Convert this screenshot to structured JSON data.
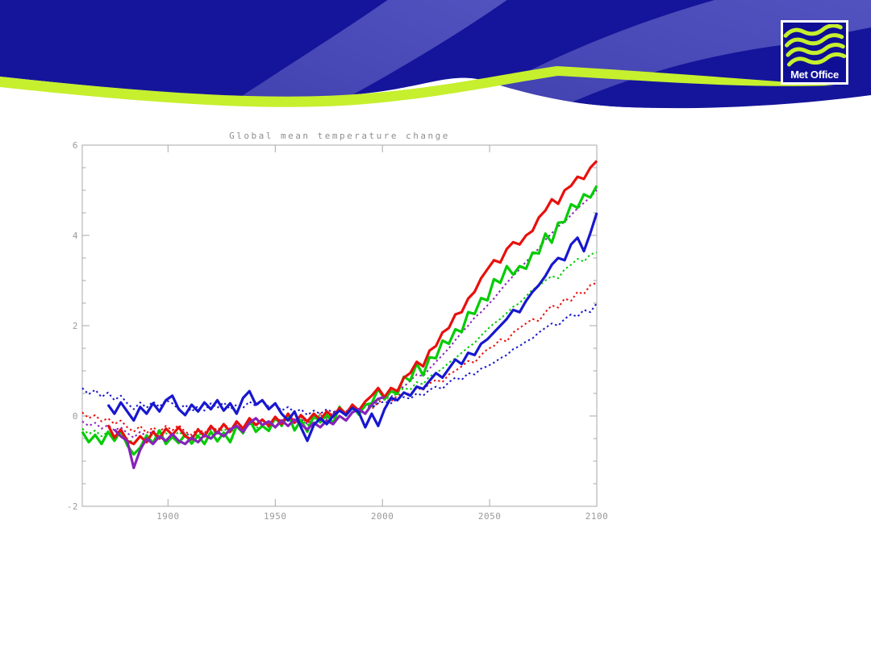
{
  "logo": {
    "text": "Met Office"
  },
  "colors": {
    "banner_navy": "#15159B",
    "banner_wave_light": "#4A4AB8",
    "banner_wave_light2": "#5353C0",
    "banner_lime": "#C6EF2E",
    "logo_navy": "#0F0F96",
    "logo_lime": "#C6EF2E",
    "background": "#FFFFFF",
    "axis": "#A9A9A9",
    "tick_label": "#9A9A9A",
    "title": "#8E8E8E"
  },
  "chart_data": {
    "type": "line",
    "title": "Global mean temperature change",
    "xlabel": "",
    "ylabel": "",
    "xlim": [
      1860,
      2100
    ],
    "ylim": [
      -2,
      6
    ],
    "xticks": [
      1900,
      1950,
      2000,
      2050,
      2100
    ],
    "yticks": [
      -2,
      0,
      2,
      4,
      6
    ],
    "y_minor_step": 0.5,
    "grid": false,
    "legend": "none",
    "x": [
      1860,
      1863,
      1866,
      1869,
      1872,
      1875,
      1878,
      1881,
      1884,
      1887,
      1890,
      1893,
      1896,
      1899,
      1902,
      1905,
      1908,
      1911,
      1914,
      1917,
      1920,
      1923,
      1926,
      1929,
      1932,
      1935,
      1938,
      1941,
      1944,
      1947,
      1950,
      1953,
      1956,
      1959,
      1962,
      1965,
      1968,
      1971,
      1974,
      1977,
      1980,
      1983,
      1986,
      1989,
      1992,
      1995,
      1998,
      2001,
      2004,
      2007,
      2010,
      2013,
      2016,
      2019,
      2022,
      2025,
      2028,
      2031,
      2034,
      2037,
      2040,
      2043,
      2046,
      2049,
      2052,
      2055,
      2058,
      2061,
      2064,
      2067,
      2070,
      2073,
      2076,
      2079,
      2082,
      2085,
      2088,
      2091,
      2094,
      2097,
      2100
    ],
    "series": [
      {
        "name": "dashed-red",
        "color": "#E8100C",
        "style": "dashed",
        "width": 2,
        "values": [
          0.08,
          -0.05,
          0.02,
          -0.12,
          -0.05,
          -0.18,
          -0.1,
          -0.25,
          -0.35,
          -0.22,
          -0.38,
          -0.25,
          -0.35,
          -0.22,
          -0.32,
          -0.2,
          -0.35,
          -0.42,
          -0.28,
          -0.38,
          -0.22,
          -0.32,
          -0.18,
          -0.28,
          -0.15,
          -0.25,
          -0.1,
          -0.2,
          -0.08,
          -0.18,
          -0.02,
          -0.12,
          0.02,
          -0.1,
          -0.02,
          -0.15,
          -0.05,
          0.05,
          -0.05,
          0.08,
          0.15,
          0.05,
          0.18,
          0.1,
          0.22,
          0.15,
          0.3,
          0.38,
          0.32,
          0.45,
          0.52,
          0.48,
          0.62,
          0.58,
          0.72,
          0.8,
          0.75,
          0.92,
          1.0,
          1.1,
          1.22,
          1.18,
          1.35,
          1.48,
          1.55,
          1.7,
          1.65,
          1.85,
          1.95,
          2.05,
          2.15,
          2.1,
          2.3,
          2.45,
          2.4,
          2.6,
          2.55,
          2.75,
          2.7,
          2.9,
          2.95
        ]
      },
      {
        "name": "dashed-green",
        "color": "#00CC00",
        "style": "dashed",
        "width": 2,
        "values": [
          -0.28,
          -0.4,
          -0.32,
          -0.45,
          -0.35,
          -0.48,
          -0.38,
          -0.5,
          -0.6,
          -0.45,
          -0.55,
          -0.4,
          -0.5,
          -0.38,
          -0.48,
          -0.35,
          -0.45,
          -0.52,
          -0.38,
          -0.45,
          -0.3,
          -0.4,
          -0.28,
          -0.38,
          -0.22,
          -0.32,
          -0.18,
          -0.28,
          -0.15,
          -0.25,
          -0.08,
          -0.18,
          -0.05,
          -0.15,
          -0.08,
          -0.2,
          -0.08,
          0.02,
          -0.08,
          0.05,
          0.12,
          0.02,
          0.15,
          0.08,
          0.2,
          0.18,
          0.35,
          0.42,
          0.38,
          0.52,
          0.62,
          0.58,
          0.75,
          0.7,
          0.88,
          0.95,
          1.05,
          1.18,
          1.28,
          1.4,
          1.52,
          1.62,
          1.78,
          1.92,
          2.05,
          2.15,
          2.28,
          2.42,
          2.5,
          2.65,
          2.8,
          2.88,
          3.0,
          3.1,
          3.05,
          3.25,
          3.35,
          3.48,
          3.42,
          3.58,
          3.62
        ]
      },
      {
        "name": "dashed-purple",
        "color": "#8822BB",
        "style": "dashed",
        "width": 2,
        "values": [
          -0.12,
          -0.22,
          -0.15,
          -0.28,
          -0.2,
          -0.32,
          -0.25,
          -0.38,
          -0.48,
          -0.35,
          -0.45,
          -0.32,
          -0.42,
          -0.3,
          -0.4,
          -0.28,
          -0.38,
          -0.45,
          -0.32,
          -0.4,
          -0.28,
          -0.35,
          -0.22,
          -0.32,
          -0.18,
          -0.28,
          -0.12,
          -0.22,
          -0.1,
          -0.2,
          -0.08,
          -0.15,
          -0.02,
          -0.12,
          -0.05,
          -0.18,
          -0.05,
          0.02,
          -0.05,
          0.05,
          0.12,
          0.05,
          0.18,
          0.12,
          0.25,
          0.2,
          0.35,
          0.45,
          0.42,
          0.58,
          0.65,
          0.78,
          0.92,
          0.88,
          1.05,
          1.2,
          1.35,
          1.5,
          1.68,
          1.85,
          2.0,
          2.18,
          2.3,
          2.45,
          2.6,
          2.78,
          2.95,
          3.1,
          3.25,
          3.42,
          3.55,
          3.72,
          3.9,
          4.05,
          4.2,
          4.3,
          4.45,
          4.6,
          4.72,
          4.85,
          5.0
        ]
      },
      {
        "name": "dashed-blue",
        "color": "#1717CF",
        "style": "dashed",
        "width": 2,
        "values": [
          0.62,
          0.48,
          0.58,
          0.42,
          0.52,
          0.35,
          0.45,
          0.28,
          0.15,
          0.3,
          0.18,
          0.32,
          0.2,
          0.35,
          0.28,
          0.15,
          0.25,
          0.1,
          0.22,
          0.12,
          0.28,
          0.18,
          0.3,
          0.15,
          0.25,
          0.18,
          0.32,
          0.22,
          0.35,
          0.2,
          0.25,
          0.12,
          0.2,
          0.08,
          0.15,
          0.02,
          0.12,
          0.05,
          0.15,
          0.08,
          0.15,
          0.1,
          0.2,
          0.12,
          0.25,
          0.18,
          0.28,
          0.32,
          0.28,
          0.38,
          0.42,
          0.38,
          0.5,
          0.45,
          0.58,
          0.65,
          0.6,
          0.75,
          0.85,
          0.8,
          0.95,
          0.92,
          1.05,
          1.1,
          1.18,
          1.28,
          1.35,
          1.48,
          1.55,
          1.65,
          1.72,
          1.85,
          1.95,
          2.05,
          2.0,
          2.15,
          2.25,
          2.2,
          2.35,
          2.3,
          2.5
        ]
      },
      {
        "name": "solid-green",
        "color": "#00CC00",
        "style": "solid",
        "width": 3.2,
        "values": [
          -0.35,
          -0.58,
          -0.42,
          -0.62,
          -0.35,
          -0.55,
          -0.32,
          -0.65,
          -0.85,
          -0.7,
          -0.43,
          -0.6,
          -0.32,
          -0.62,
          -0.46,
          -0.6,
          -0.41,
          -0.61,
          -0.44,
          -0.62,
          -0.35,
          -0.56,
          -0.37,
          -0.58,
          -0.22,
          -0.38,
          -0.08,
          -0.35,
          -0.22,
          -0.33,
          -0.03,
          -0.22,
          0.05,
          -0.32,
          -0.09,
          -0.35,
          0.02,
          -0.14,
          0.03,
          -0.16,
          0.2,
          0.01,
          0.22,
          0.03,
          0.25,
          0.28,
          0.6,
          0.37,
          0.55,
          0.49,
          0.87,
          0.78,
          1.16,
          0.9,
          1.3,
          1.28,
          1.67,
          1.6,
          1.92,
          1.86,
          2.3,
          2.26,
          2.61,
          2.56,
          3.03,
          2.95,
          3.32,
          3.13,
          3.32,
          3.26,
          3.62,
          3.6,
          4.04,
          3.84,
          4.28,
          4.3,
          4.69,
          4.61,
          4.91,
          4.84,
          5.1
        ]
      },
      {
        "name": "solid-red",
        "color": "#E8100C",
        "style": "solid",
        "width": 3.2,
        "values": [
          null,
          null,
          null,
          null,
          -0.2,
          -0.48,
          -0.3,
          -0.55,
          -0.62,
          -0.45,
          -0.58,
          -0.35,
          -0.5,
          -0.28,
          -0.42,
          -0.25,
          -0.45,
          -0.52,
          -0.3,
          -0.45,
          -0.22,
          -0.38,
          -0.18,
          -0.35,
          -0.12,
          -0.28,
          -0.05,
          -0.2,
          -0.08,
          -0.22,
          -0.02,
          -0.18,
          0.05,
          -0.15,
          0.02,
          -0.12,
          0.05,
          -0.08,
          0.1,
          -0.02,
          0.18,
          0.05,
          0.25,
          0.12,
          0.32,
          0.45,
          0.62,
          0.42,
          0.62,
          0.55,
          0.85,
          0.95,
          1.2,
          1.1,
          1.45,
          1.55,
          1.85,
          1.95,
          2.25,
          2.3,
          2.6,
          2.75,
          3.05,
          3.25,
          3.45,
          3.4,
          3.7,
          3.85,
          3.8,
          4.0,
          4.1,
          4.4,
          4.55,
          4.8,
          4.7,
          5.0,
          5.1,
          5.3,
          5.25,
          5.5,
          5.65
        ]
      },
      {
        "name": "solid-purple",
        "color": "#8822BB",
        "style": "solid",
        "width": 3.2,
        "values": [
          null,
          null,
          null,
          null,
          null,
          -0.3,
          -0.45,
          -0.55,
          -1.15,
          -0.75,
          -0.5,
          -0.62,
          -0.45,
          -0.55,
          -0.4,
          -0.55,
          -0.62,
          -0.48,
          -0.58,
          -0.42,
          -0.5,
          -0.35,
          -0.45,
          -0.3,
          -0.22,
          -0.35,
          -0.15,
          -0.05,
          -0.2,
          -0.12,
          -0.25,
          -0.1,
          -0.22,
          -0.08,
          -0.18,
          -0.3,
          -0.15,
          -0.25,
          -0.1,
          -0.18,
          0.0,
          -0.1,
          0.08,
          0.15,
          0.05,
          0.25,
          0.38,
          0.42,
          null,
          null,
          null,
          null,
          null,
          null,
          null,
          null,
          null,
          null,
          null,
          null,
          null,
          null,
          null,
          null,
          null,
          null,
          null,
          null,
          null,
          null,
          null,
          null,
          null,
          null,
          null,
          null,
          null,
          null,
          null,
          null,
          null
        ]
      },
      {
        "name": "solid-blue",
        "color": "#1717CF",
        "style": "solid",
        "width": 3.2,
        "values": [
          null,
          null,
          null,
          null,
          0.25,
          0.05,
          0.3,
          0.1,
          -0.1,
          0.2,
          0.05,
          0.28,
          0.1,
          0.35,
          0.45,
          0.15,
          0.02,
          0.25,
          0.1,
          0.3,
          0.15,
          0.35,
          0.12,
          0.28,
          0.05,
          0.4,
          0.55,
          0.25,
          0.35,
          0.15,
          0.28,
          0.05,
          -0.1,
          0.1,
          -0.25,
          -0.55,
          -0.2,
          -0.05,
          -0.18,
          0.0,
          0.12,
          0.02,
          0.18,
          0.08,
          -0.25,
          0.05,
          -0.22,
          0.15,
          0.4,
          0.35,
          0.52,
          0.45,
          0.65,
          0.6,
          0.78,
          0.95,
          0.85,
          1.05,
          1.25,
          1.15,
          1.4,
          1.35,
          1.6,
          1.7,
          1.85,
          2.0,
          2.15,
          2.35,
          2.3,
          2.55,
          2.75,
          2.9,
          3.1,
          3.35,
          3.5,
          3.45,
          3.8,
          3.95,
          3.65,
          4.05,
          4.5
        ]
      }
    ]
  }
}
